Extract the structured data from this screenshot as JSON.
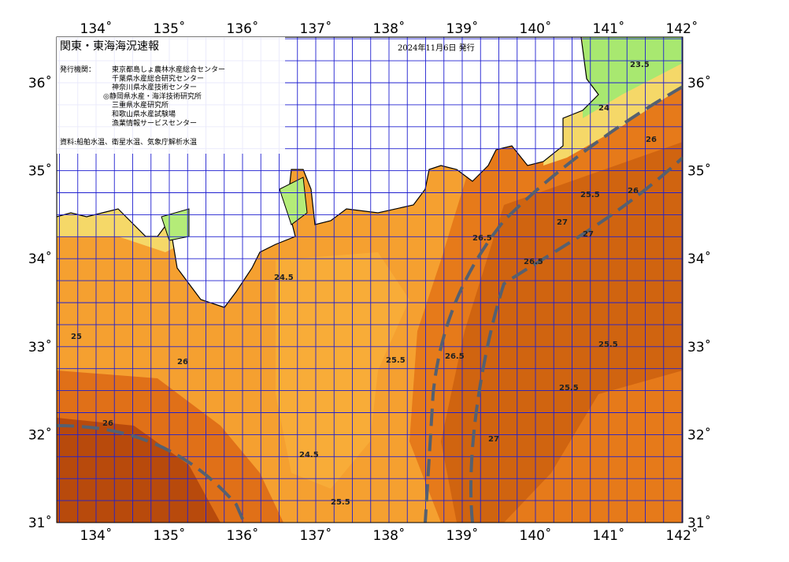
{
  "header": {
    "title": "関東・東海海況速報",
    "issue_date": "2024年11月6日 発行",
    "issuer_label": "発行機関：",
    "issuers": [
      "東京都島しょ農林水産総合センター",
      "千葉県水産総合研究センター",
      "神奈川県水産技術センター",
      "◎静岡県水産・海洋技術研究所",
      "三重県水産研究所",
      "和歌山県水産試験場",
      "漁業情報サービスセンター"
    ],
    "source": "資料:船舶水温、衛星水温、気象庁解析水温"
  },
  "axes": {
    "lon_labels": [
      "134˚",
      "135˚",
      "136˚",
      "137˚",
      "138˚",
      "139˚",
      "140˚",
      "141˚",
      "142˚"
    ],
    "lat_labels": [
      "36˚",
      "35˚",
      "34˚",
      "33˚",
      "32˚",
      "31˚"
    ]
  },
  "contour_labels": [
    "24.5",
    "25",
    "25.5",
    "26",
    "26.5",
    "27",
    "25.5",
    "26",
    "24.5",
    "25.5",
    "26.5",
    "27",
    "26",
    "25.5",
    "26.5",
    "27",
    "26",
    "25.5",
    "23.5",
    "24"
  ]
}
